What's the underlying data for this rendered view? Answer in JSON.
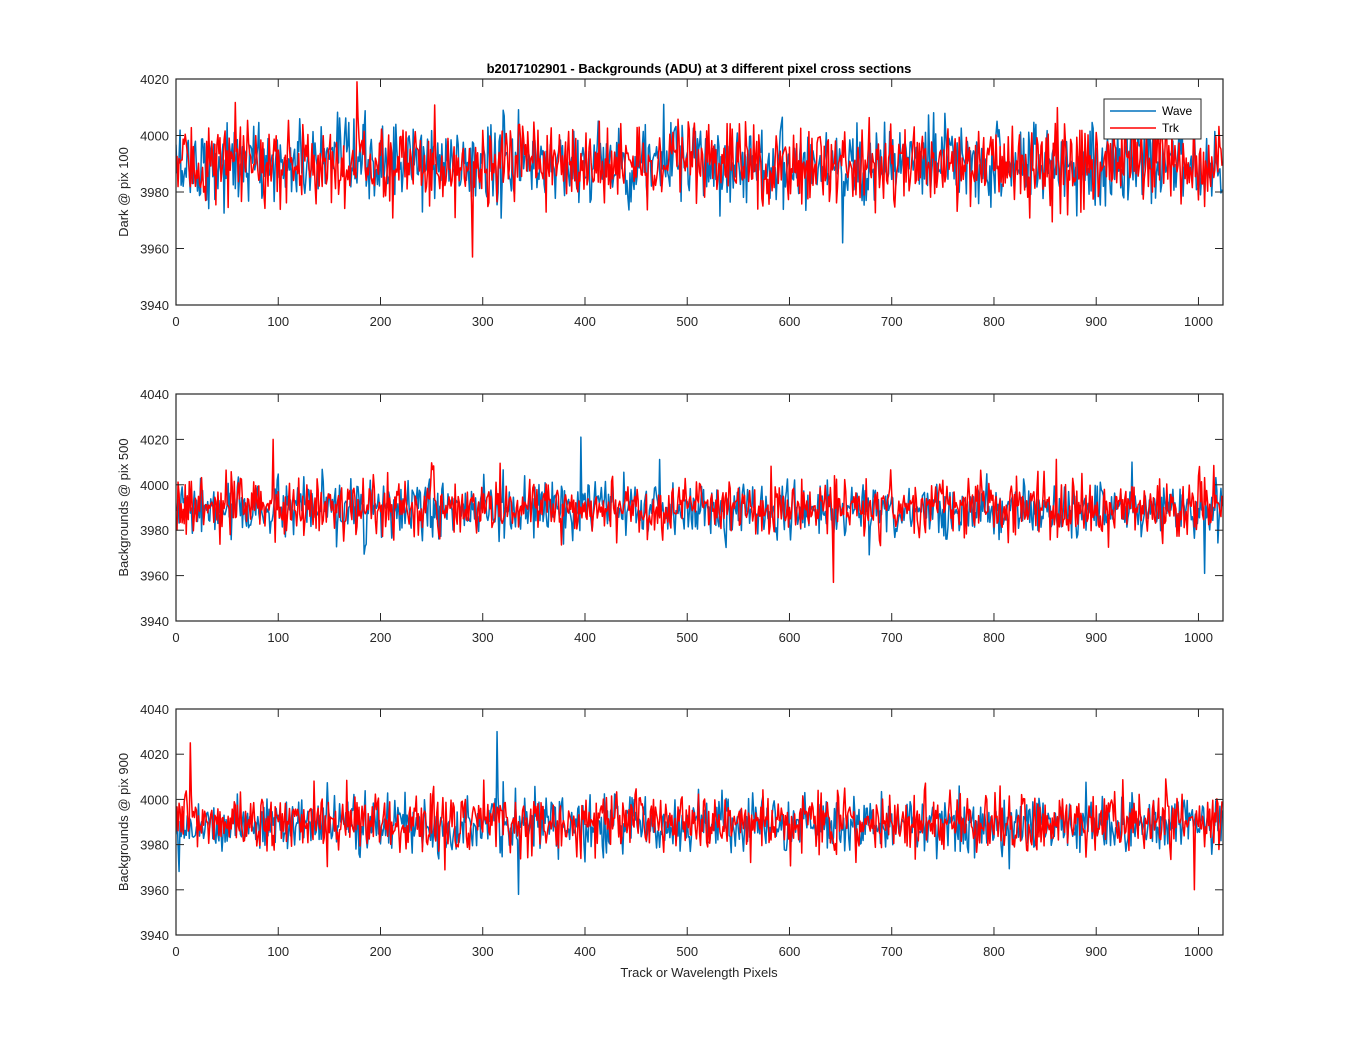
{
  "title": "b2017102901 - Backgrounds (ADU) at 3 different pixel cross sections",
  "xlabel": "Track or Wavelength Pixels",
  "colors": {
    "wave": "#0072BD",
    "trk": "#FF0000",
    "axis": "#262626"
  },
  "chart_data": [
    {
      "type": "line",
      "ylabel": "Dark @ pix 100",
      "xlim": [
        0,
        1024
      ],
      "ylim": [
        3940,
        4020
      ],
      "xticks": [
        0,
        100,
        200,
        300,
        400,
        500,
        600,
        700,
        800,
        900,
        1000
      ],
      "yticks": [
        3940,
        3960,
        3980,
        4000,
        4020
      ],
      "legend": {
        "position": "top-right",
        "entries": [
          "Wave",
          "Trk"
        ]
      },
      "series": [
        {
          "name": "Wave",
          "mean": 3990,
          "noise_sd": 7.0,
          "min": 3962,
          "max": 4011,
          "n_points": 1024
        },
        {
          "name": "Trk",
          "mean": 3990,
          "noise_sd": 7.0,
          "min": 3957,
          "max": 4019,
          "n_points": 1024
        }
      ]
    },
    {
      "type": "line",
      "ylabel": "Backgrounds @ pix 500",
      "xlim": [
        0,
        1024
      ],
      "ylim": [
        3940,
        4040
      ],
      "xticks": [
        0,
        100,
        200,
        300,
        400,
        500,
        600,
        700,
        800,
        900,
        1000
      ],
      "yticks": [
        3940,
        3960,
        3980,
        4000,
        4020,
        4040
      ],
      "series": [
        {
          "name": "Wave",
          "mean": 3989,
          "noise_sd": 6.0,
          "min": 3961,
          "max": 4021,
          "n_points": 1024
        },
        {
          "name": "Trk",
          "mean": 3990,
          "noise_sd": 6.0,
          "min": 3957,
          "max": 4020,
          "n_points": 1024
        }
      ]
    },
    {
      "type": "line",
      "ylabel": "Backgrounds @ pix 900",
      "xlim": [
        0,
        1024
      ],
      "ylim": [
        3940,
        4040
      ],
      "xticks": [
        0,
        100,
        200,
        300,
        400,
        500,
        600,
        700,
        800,
        900,
        1000
      ],
      "yticks": [
        3940,
        3960,
        3980,
        4000,
        4020,
        4040
      ],
      "series": [
        {
          "name": "Wave",
          "mean": 3989,
          "noise_sd": 6.0,
          "min": 3958,
          "max": 4030,
          "n_points": 1024
        },
        {
          "name": "Trk",
          "mean": 3990,
          "noise_sd": 6.5,
          "min": 3960,
          "max": 4025,
          "n_points": 1024
        }
      ]
    }
  ]
}
